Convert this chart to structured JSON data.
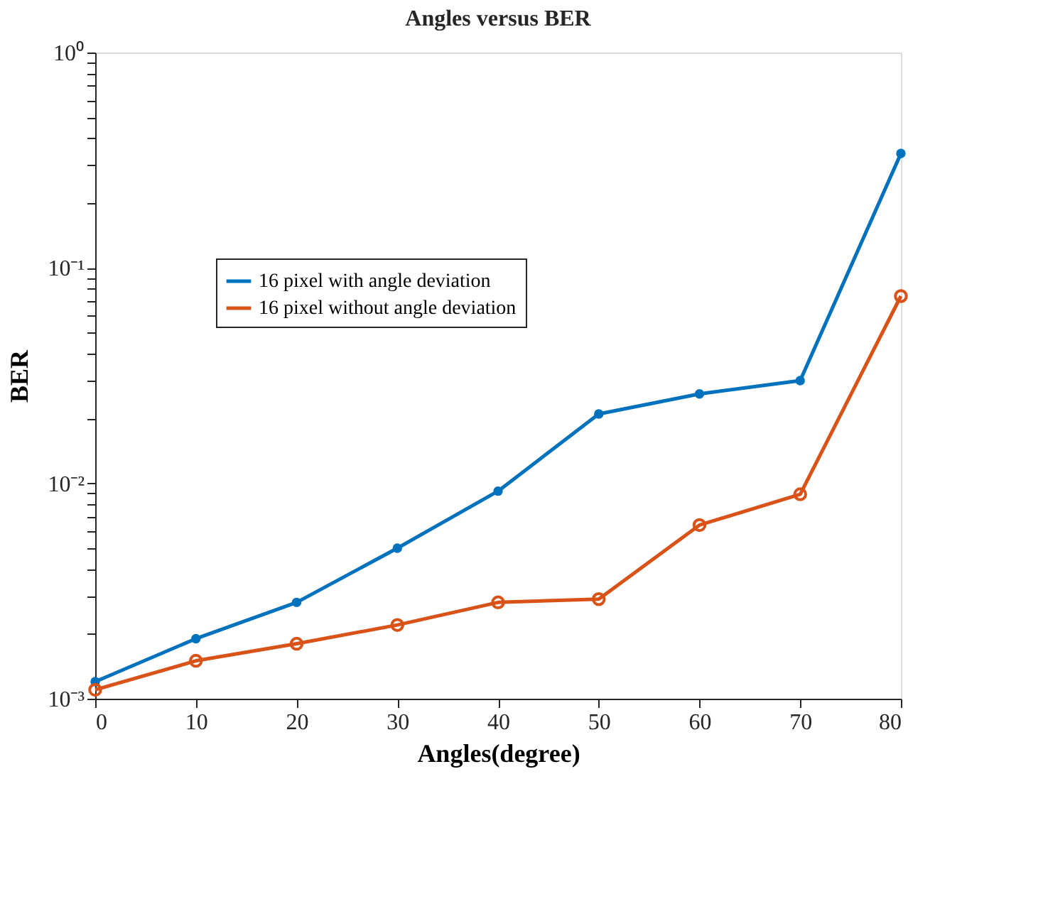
{
  "chart_data": {
    "type": "line",
    "title": "Angles versus BER",
    "xlabel": "Angles(degree)",
    "ylabel": "BER",
    "x": [
      0,
      10,
      20,
      30,
      40,
      50,
      60,
      70,
      80
    ],
    "series": [
      {
        "name": "16 pixel with angle deviation",
        "color": "#0072bd",
        "values": [
          0.0012,
          0.0019,
          0.0028,
          0.005,
          0.0092,
          0.021,
          0.026,
          0.03,
          0.34
        ]
      },
      {
        "name": "16 pixel without angle deviation",
        "color": "#d95319",
        "values": [
          0.0011,
          0.0015,
          0.0018,
          0.0022,
          0.0028,
          0.0029,
          0.0064,
          0.0089,
          0.074
        ]
      }
    ],
    "xlim": [
      0,
      80
    ],
    "xticks": [
      0,
      10,
      20,
      30,
      40,
      50,
      60,
      70,
      80
    ],
    "ylim": [
      0.001,
      1
    ],
    "yticks": [
      {
        "value": 0.001,
        "label": "10⁻³"
      },
      {
        "value": 0.002,
        "label": null
      },
      {
        "value": 0.003,
        "label": null
      },
      {
        "value": 0.004,
        "label": null
      },
      {
        "value": 0.005,
        "label": null
      },
      {
        "value": 0.006,
        "label": null
      },
      {
        "value": 0.007,
        "label": null
      },
      {
        "value": 0.008,
        "label": null
      },
      {
        "value": 0.009,
        "label": null
      },
      {
        "value": 0.01,
        "label": "10⁻²"
      },
      {
        "value": 0.02,
        "label": null
      },
      {
        "value": 0.03,
        "label": null
      },
      {
        "value": 0.04,
        "label": null
      },
      {
        "value": 0.05,
        "label": null
      },
      {
        "value": 0.06,
        "label": null
      },
      {
        "value": 0.07,
        "label": null
      },
      {
        "value": 0.08,
        "label": null
      },
      {
        "value": 0.09,
        "label": null
      },
      {
        "value": 0.1,
        "label": "10⁻¹"
      },
      {
        "value": 0.2,
        "label": null
      },
      {
        "value": 0.3,
        "label": null
      },
      {
        "value": 0.4,
        "label": null
      },
      {
        "value": 0.5,
        "label": null
      },
      {
        "value": 0.6,
        "label": null
      },
      {
        "value": 0.7,
        "label": null
      },
      {
        "value": 0.8,
        "label": null
      },
      {
        "value": 0.9,
        "label": null
      },
      {
        "value": 1,
        "label": "10⁰"
      }
    ],
    "log": "y",
    "grid": false,
    "legend": "top left",
    "marker": "circle",
    "line_style": "solid"
  }
}
